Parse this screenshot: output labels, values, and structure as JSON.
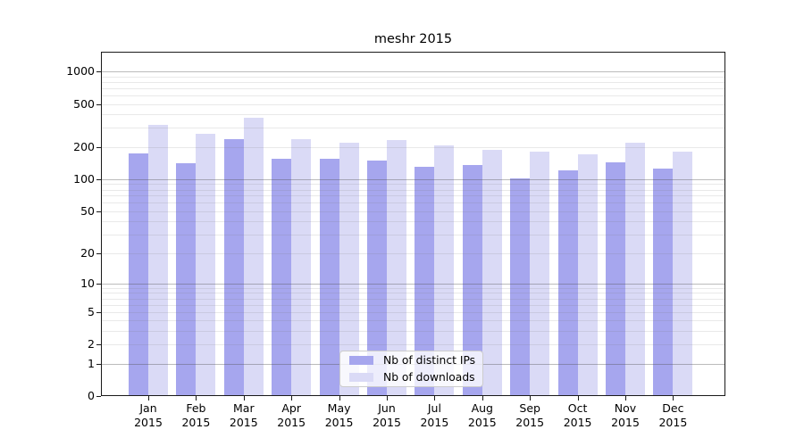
{
  "chart_data": {
    "type": "bar",
    "title": "meshr 2015",
    "categories": [
      "Jan",
      "Feb",
      "Mar",
      "Apr",
      "May",
      "Jun",
      "Jul",
      "Aug",
      "Sep",
      "Oct",
      "Nov",
      "Dec"
    ],
    "category_year": "2015",
    "series": [
      {
        "name": "Nb of distinct IPs",
        "color": "#a6a6ee",
        "values": [
          175,
          142,
          236,
          154,
          155,
          149,
          130,
          135,
          101,
          120,
          143,
          126
        ]
      },
      {
        "name": "Nb of downloads",
        "color": "#dadaf6",
        "values": [
          320,
          264,
          375,
          234,
          217,
          231,
          205,
          189,
          180,
          172,
          218,
          180
        ]
      }
    ],
    "xlabel": "",
    "ylabel": "",
    "yscale": "log1p",
    "ylim": [
      0,
      1520
    ],
    "ytick_labels": [
      1000,
      500,
      200,
      100,
      50,
      20,
      10,
      5,
      2,
      1,
      0
    ],
    "grid": true,
    "grid_major_at": [
      1,
      10,
      100,
      1000
    ],
    "legend_position": "lower-center"
  }
}
